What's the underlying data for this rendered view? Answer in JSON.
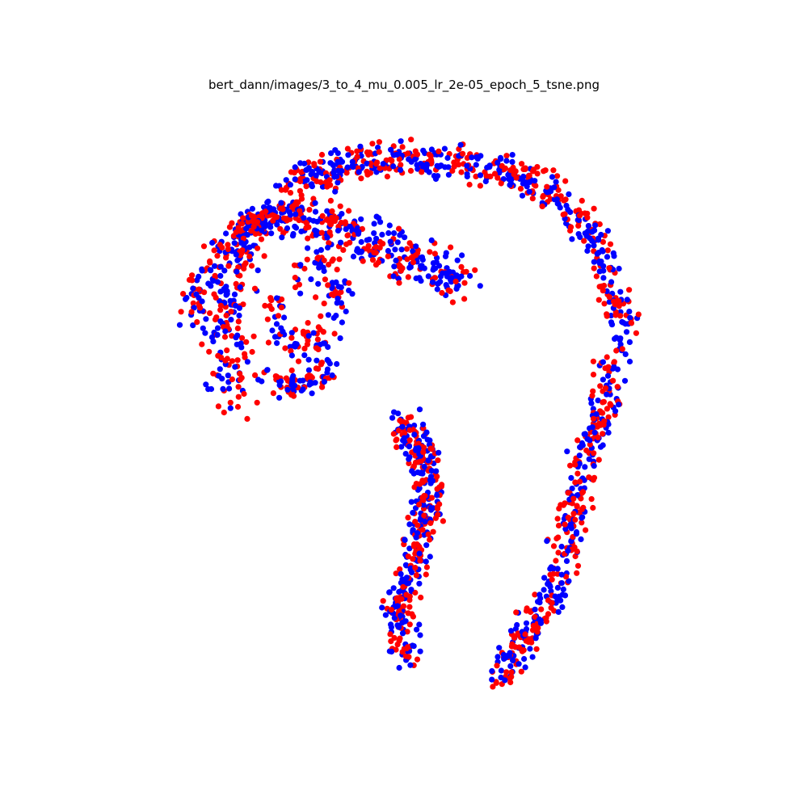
{
  "chart_data": {
    "type": "scatter",
    "title": "bert_dann/images/3_to_4_mu_0.005_lr_2e-05_epoch_5_tsne.png",
    "axes_visible": false,
    "grid": false,
    "legend": "none",
    "xlim": [
      -80,
      80
    ],
    "ylim": [
      -80,
      80
    ],
    "series": [
      {
        "color": "#ff0000",
        "marker": "circle",
        "seed": 7,
        "arms": [
          {
            "x": [
              -46,
              -49,
              -44,
              -32,
              -16,
              2,
              12
            ],
            "y": [
              1,
              22,
              42,
              52,
              44,
              36,
              32
            ],
            "n": 240,
            "spread": 6.4
          },
          {
            "x": [
              -32,
              -16,
              0,
              16,
              32,
              46,
              54
            ],
            "y": [
              58,
              62,
              64,
              62,
              58,
              45,
              22
            ],
            "n": 250,
            "spread": 5.0
          },
          {
            "x": [
              54,
              48,
              42,
              38,
              30,
              22
            ],
            "y": [
              22,
              -2,
              -22,
              -42,
              -58,
              -72
            ],
            "n": 200,
            "spread": 4.6
          },
          {
            "x": [
              -30,
              -22,
              -20,
              -26,
              -34,
              -36
            ],
            "y": [
              34,
              39,
              24,
              14,
              18,
              28
            ],
            "n": 70,
            "spread": 4.6
          },
          {
            "x": [
              -38,
              -30,
              -22
            ],
            "y": [
              8,
              4,
              10
            ],
            "n": 40,
            "spread": 3.8
          },
          {
            "x": [
              -4,
              2,
              4,
              0,
              -4,
              -2
            ],
            "y": [
              -4,
              -12,
              -26,
              -40,
              -54,
              -66
            ],
            "n": 190,
            "spread": 4.4
          },
          {
            "x": [
              -26,
              -34,
              -42,
              -50,
              -54,
              -58
            ],
            "y": [
              44,
              50,
              48,
              40,
              30,
              20
            ],
            "n": 80,
            "spread": 4.0
          }
        ]
      },
      {
        "color": "#0000ff",
        "marker": "circle",
        "seed": 31,
        "arms": [
          {
            "x": [
              -46,
              -49,
              -44,
              -32,
              -16,
              2,
              12
            ],
            "y": [
              1,
              22,
              42,
              52,
              44,
              36,
              32
            ],
            "n": 260,
            "spread": 6.4
          },
          {
            "x": [
              -32,
              -16,
              0,
              16,
              32,
              46,
              54
            ],
            "y": [
              58,
              62,
              64,
              62,
              58,
              45,
              22
            ],
            "n": 270,
            "spread": 5.0
          },
          {
            "x": [
              54,
              48,
              42,
              38,
              30,
              22
            ],
            "y": [
              22,
              -2,
              -22,
              -42,
              -58,
              -72
            ],
            "n": 210,
            "spread": 4.6
          },
          {
            "x": [
              -30,
              -22,
              -20,
              -26,
              -34,
              -36
            ],
            "y": [
              34,
              39,
              24,
              14,
              18,
              28
            ],
            "n": 70,
            "spread": 4.6
          },
          {
            "x": [
              -38,
              -30,
              -22
            ],
            "y": [
              8,
              4,
              10
            ],
            "n": 40,
            "spread": 3.8
          },
          {
            "x": [
              -4,
              2,
              4,
              0,
              -4,
              -2
            ],
            "y": [
              -4,
              -12,
              -26,
              -40,
              -54,
              -66
            ],
            "n": 210,
            "spread": 4.4
          },
          {
            "x": [
              -26,
              -34,
              -42,
              -50,
              -54,
              -58
            ],
            "y": [
              44,
              50,
              48,
              40,
              30,
              20
            ],
            "n": 80,
            "spread": 4.0
          }
        ]
      }
    ]
  }
}
